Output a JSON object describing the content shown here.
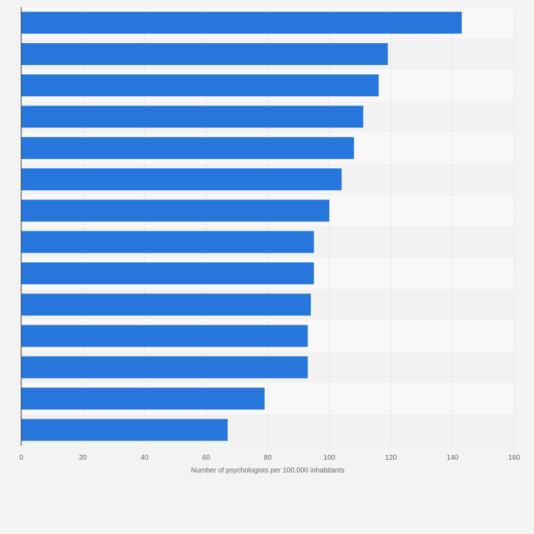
{
  "chart_data": {
    "type": "bar",
    "orientation": "horizontal",
    "title": "",
    "xlabel": "Number of psychologists per 100.000 inhabitants",
    "ylabel": "",
    "xlim": [
      0,
      160
    ],
    "x_ticks": [
      "0",
      "20",
      "40",
      "60",
      "80",
      "100",
      "120",
      "140",
      "160"
    ],
    "category_labels_visible": false,
    "values": [
      143,
      119,
      116,
      111,
      108,
      104,
      100,
      95,
      95,
      94,
      93,
      93,
      79,
      67
    ],
    "grid": true,
    "legend": "none",
    "colors": {
      "bar": "#2776dc",
      "band_light": "#f8f8f8",
      "band_dark": "#f2f2f2",
      "page": "#f3f3f3",
      "grid": "#dcdcdc",
      "axis": "#333333",
      "tick_text": "#666666"
    }
  }
}
